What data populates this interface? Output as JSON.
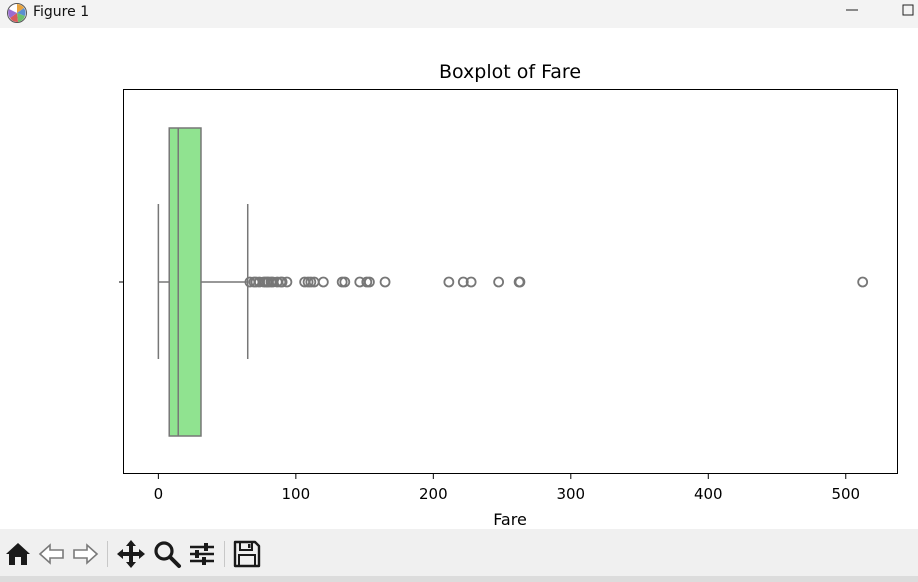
{
  "window": {
    "title": "Figure 1",
    "icon": "matplotlib-logo-icon",
    "controls": [
      "minimize-icon",
      "maximize-icon"
    ]
  },
  "toolbar": {
    "buttons": [
      {
        "name": "home-button",
        "icon": "home-icon"
      },
      {
        "name": "back-button",
        "icon": "arrow-left-icon"
      },
      {
        "name": "forward-button",
        "icon": "arrow-right-icon"
      },
      {
        "name": "pan-button",
        "icon": "move-icon"
      },
      {
        "name": "zoom-button",
        "icon": "search-icon"
      },
      {
        "name": "configure-subplots-button",
        "icon": "sliders-icon"
      },
      {
        "name": "save-button",
        "icon": "save-icon"
      }
    ]
  },
  "chart_data": {
    "type": "boxplot",
    "title": "Boxplot of Fare",
    "xlabel": "Fare",
    "ylabel": "",
    "xlim": [
      -25,
      538
    ],
    "xticks": [
      0,
      100,
      200,
      300,
      400,
      500
    ],
    "orientation": "horizontal",
    "box_color": "#90e390",
    "line_color": "#777777",
    "grid": false,
    "box": {
      "whisker_low": 0,
      "q1": 7.9,
      "median": 14.45,
      "q3": 31,
      "whisker_high": 65
    },
    "outliers": [
      66.6,
      69.55,
      71,
      73.5,
      76.7,
      77.9,
      79.2,
      80,
      81.9,
      83.2,
      86.5,
      89.1,
      90,
      93.5,
      106.4,
      108.9,
      110.9,
      113.3,
      120,
      133.7,
      135.6,
      146.5,
      151.6,
      153.5,
      164.9,
      211.3,
      221.8,
      227.5,
      247.5,
      262.4,
      263,
      512.3
    ]
  }
}
